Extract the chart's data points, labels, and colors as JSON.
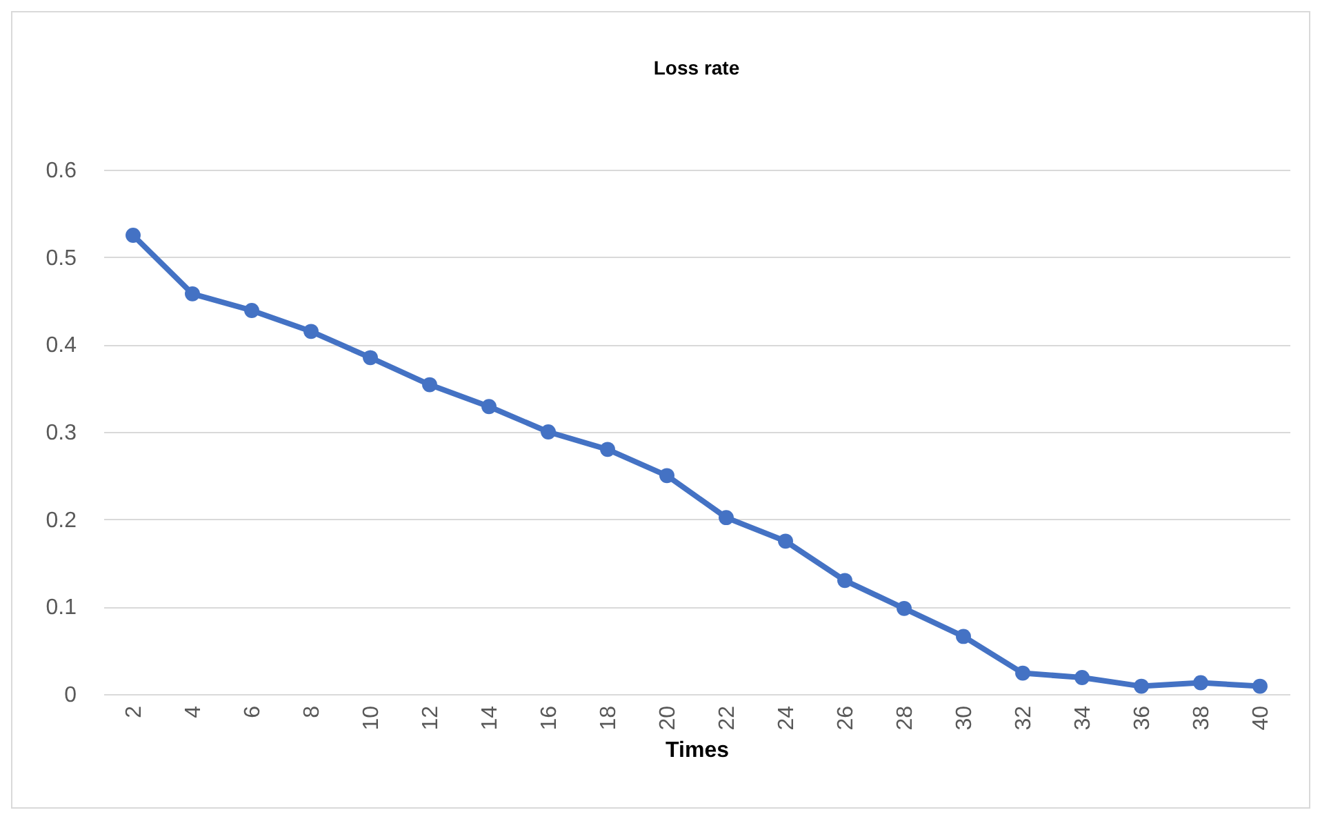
{
  "chart_data": {
    "type": "line",
    "title": "Loss rate",
    "xlabel": "Times",
    "categories": [
      "2",
      "4",
      "6",
      "8",
      "10",
      "12",
      "14",
      "16",
      "18",
      "20",
      "22",
      "24",
      "26",
      "28",
      "30",
      "32",
      "34",
      "36",
      "38",
      "40"
    ],
    "series": [
      {
        "color": "#4472c4",
        "values": [
          0.525,
          0.458,
          0.439,
          0.415,
          0.385,
          0.354,
          0.329,
          0.3,
          0.28,
          0.25,
          0.202,
          0.175,
          0.13,
          0.098,
          0.066,
          0.024,
          0.019,
          0.009,
          0.013,
          0.009
        ]
      }
    ],
    "ylim": [
      0,
      0.6
    ],
    "yticks": [
      0,
      0.1,
      0.2,
      0.3,
      0.4,
      0.5,
      0.6
    ],
    "grid": "y",
    "marker": "circle",
    "line_style": "solid",
    "legend": false
  }
}
